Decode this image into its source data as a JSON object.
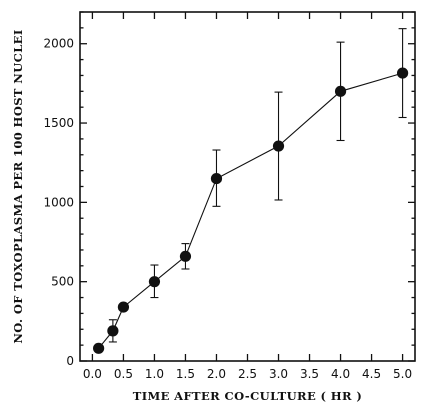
{
  "chart_data": {
    "type": "scatter",
    "xlabel": "TIME AFTER CO-CULTURE ( HR )",
    "ylabel": "NO. OF TOXOPLASMA PER 100 HOST NUCLEI",
    "xlim": [
      -0.2,
      5.2
    ],
    "ylim": [
      0,
      2200
    ],
    "x_ticks": [
      "0.0",
      "0.5",
      "1.0",
      "1.5",
      "2.0",
      "2.5",
      "3.0",
      "3.5",
      "4.0",
      "4.5",
      "5.0"
    ],
    "x_tick_values": [
      0.0,
      0.5,
      1.0,
      1.5,
      2.0,
      2.5,
      3.0,
      3.5,
      4.0,
      4.5,
      5.0
    ],
    "y_ticks": [
      "0",
      "500",
      "1000",
      "1500",
      "2000"
    ],
    "y_tick_values": [
      0,
      500,
      1000,
      1500,
      2000
    ],
    "y_minor_step": 100,
    "connected": true,
    "grid": false,
    "points": [
      {
        "x": 0.1,
        "y": 80,
        "err_low": null,
        "err_high": null
      },
      {
        "x": 0.33,
        "y": 190,
        "err_low": 120,
        "err_high": 260
      },
      {
        "x": 0.5,
        "y": 340,
        "err_low": null,
        "err_high": null
      },
      {
        "x": 1.0,
        "y": 500,
        "err_low": 400,
        "err_high": 605
      },
      {
        "x": 1.5,
        "y": 660,
        "err_low": 580,
        "err_high": 740
      },
      {
        "x": 2.0,
        "y": 1150,
        "err_low": 975,
        "err_high": 1330
      },
      {
        "x": 3.0,
        "y": 1355,
        "err_low": 1015,
        "err_high": 1695
      },
      {
        "x": 4.0,
        "y": 1700,
        "err_low": 1390,
        "err_high": 2010
      },
      {
        "x": 5.0,
        "y": 1815,
        "err_low": 1535,
        "err_high": 2095
      }
    ]
  }
}
